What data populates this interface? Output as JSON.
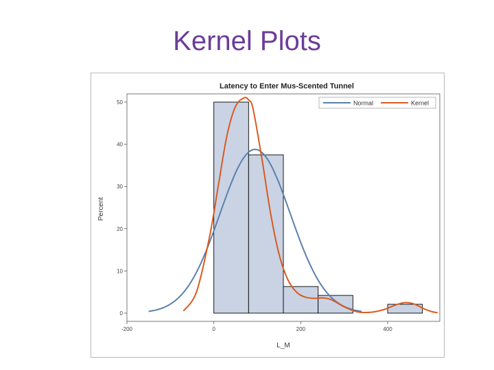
{
  "slide": {
    "title": "Kernel Plots"
  },
  "colors": {
    "title": "#6a3d9a",
    "bar_fill": "#c9d3e4",
    "bar_stroke": "#000000",
    "normal": "#5b7fad",
    "kernel": "#d95a1e"
  },
  "chart_data": {
    "type": "bar",
    "title": "Latency to Enter Mus-Scented Tunnel",
    "xlabel": "L_M",
    "ylabel": "Percent",
    "xlim": [
      -200,
      520
    ],
    "ylim": [
      0,
      50
    ],
    "x_ticks": [
      -200,
      0,
      200,
      400
    ],
    "y_ticks": [
      0,
      10,
      20,
      30,
      40,
      50
    ],
    "x_tick_labels": [
      "-200",
      "0",
      "200",
      "400"
    ],
    "y_tick_labels": [
      "0",
      "10",
      "20",
      "30",
      "40",
      "50"
    ],
    "grid": false,
    "legend_position": "top-right",
    "histogram": {
      "bin_edges": [
        0,
        80,
        160,
        240,
        320,
        400,
        480
      ],
      "values": [
        50,
        37.5,
        6.3,
        4.2,
        0,
        2.1
      ]
    },
    "series": [
      {
        "name": "Normal",
        "type": "line",
        "color": "#5b7fad",
        "mean": 95,
        "sd": 81
      },
      {
        "name": "Kernel",
        "type": "line",
        "color": "#d95a1e",
        "x": [
          -70,
          -40,
          -10,
          10,
          30,
          50,
          70,
          80,
          90,
          110,
          130,
          150,
          170,
          190,
          210,
          230,
          250,
          270,
          300,
          330,
          360,
          390,
          420,
          440,
          460,
          480,
          500,
          515
        ],
        "y": [
          0.5,
          5,
          18,
          30,
          42,
          49,
          51,
          50.5,
          48.5,
          37,
          24,
          14,
          8,
          5,
          3.8,
          3.5,
          3.6,
          3.2,
          1.5,
          0.3,
          0.2,
          0.8,
          2,
          2.5,
          2.2,
          1.2,
          0.4,
          0.1
        ]
      }
    ]
  }
}
